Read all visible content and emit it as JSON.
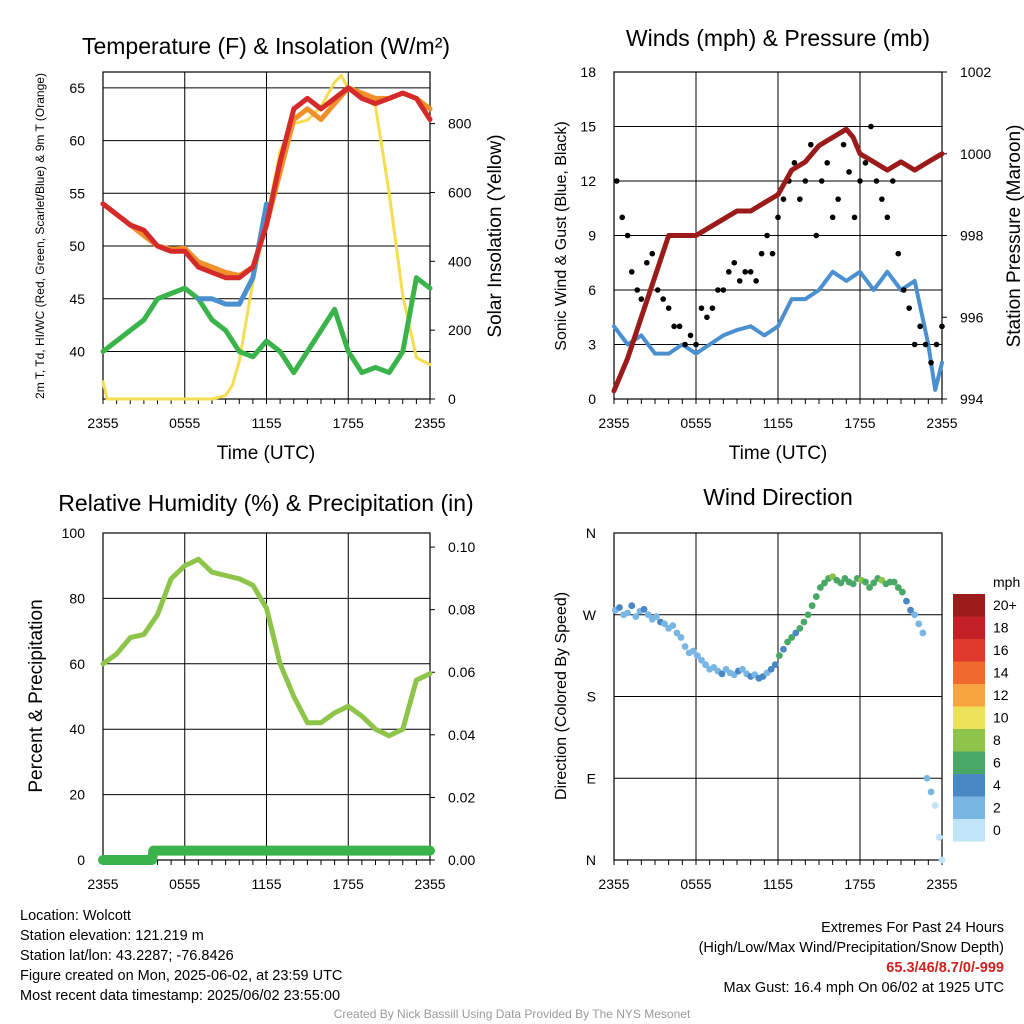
{
  "info": {
    "location": "Location: Wolcott",
    "elevation": "Station elevation: 121.219 m",
    "latlon": "Station lat/lon: 43.2287; -76.8426",
    "created": "Figure created on Mon, 2025-06-02, at 23:59 UTC",
    "recent": "Most recent data timestamp: 2025/06/02 23:55:00",
    "extremes_title": "Extremes For Past 24 Hours",
    "extremes_sub": "(High/Low/Max Wind/Precipitation/Snow Depth)",
    "extremes_values": "65.3/46/8.7/0/-999",
    "max_gust": "Max Gust: 16.4 mph On 06/02 at 1925 UTC"
  },
  "credit": "Created By Nick Bassill Using Data Provided By The NYS Mesonet",
  "colors": {
    "red": "#d42a2a",
    "orange": "#f0902a",
    "green": "#3ab34a",
    "blue": "#4a90d0",
    "yellow": "#f5dc50",
    "maroon": "#9b1b1b",
    "black": "#000000",
    "rh": "#8ec44a",
    "precip": "#3ab34a"
  },
  "chart_data": [
    {
      "type": "line",
      "title": "Temperature (F) & Insolation (W/m²)",
      "xlabel": "Time (UTC)",
      "ylabel": "2m T, Td, HI/WC (Red, Green, Scarlet/Blue) & 9m T (Orange)",
      "y2label": "Solar Insolation (Yellow)",
      "xticks": [
        "2355",
        "0555",
        "1155",
        "1755",
        "2355"
      ],
      "xlim": [
        0,
        24
      ],
      "ylim": [
        35.5,
        66.5
      ],
      "y2lim": [
        0,
        950
      ],
      "yticks": [
        40,
        45,
        50,
        55,
        60,
        65
      ],
      "y2ticks": [
        0,
        200,
        400,
        600,
        800
      ],
      "series": [
        {
          "name": "Temperature",
          "color": "red",
          "x": [
            0,
            1,
            2,
            3,
            4,
            5,
            6,
            7,
            8,
            9,
            10,
            11,
            12,
            13,
            14,
            15,
            16,
            17,
            18,
            19,
            20,
            21,
            22,
            23,
            24
          ],
          "y": [
            54,
            53,
            52,
            51.5,
            50,
            49.5,
            49.5,
            48,
            47.5,
            47,
            47,
            48,
            52,
            58,
            63,
            64,
            63,
            64,
            65,
            64,
            63.5,
            64,
            64.5,
            64,
            62
          ]
        },
        {
          "name": "9m Temperature",
          "color": "orange",
          "x": [
            0,
            2,
            4,
            5,
            6,
            7,
            8,
            9,
            10,
            11,
            12,
            13,
            14,
            15,
            16,
            17,
            18,
            19,
            20,
            21,
            22,
            23,
            24
          ],
          "y": [
            54,
            52,
            50,
            49.7,
            49.8,
            48.5,
            48,
            47.5,
            47.2,
            48,
            52,
            57,
            62,
            63,
            62,
            63.5,
            65,
            64.5,
            64,
            64,
            64.5,
            64,
            63
          ]
        },
        {
          "name": "Dewpoint",
          "color": "green",
          "x": [
            0,
            1,
            2,
            3,
            4,
            5,
            6,
            7,
            8,
            9,
            10,
            11,
            12,
            13,
            14,
            15,
            16,
            17,
            18,
            19,
            20,
            21,
            22,
            23,
            24
          ],
          "y": [
            40,
            41,
            42,
            43,
            45,
            45.5,
            46,
            45,
            43,
            42,
            40,
            39.5,
            41,
            40,
            38,
            40,
            42,
            44,
            40,
            38,
            38.5,
            38,
            40,
            47,
            46
          ]
        },
        {
          "name": "Heat Index / Wind Chill",
          "color": "blue",
          "x": [
            7,
            8,
            9,
            10,
            11,
            12
          ],
          "y": [
            45,
            45,
            44.5,
            44.5,
            47,
            54
          ]
        },
        {
          "name": "Solar Insolation",
          "color": "yellow",
          "axis": "y2",
          "x": [
            0,
            0.3,
            2,
            4,
            6,
            8,
            9,
            9.5,
            10,
            11,
            12,
            13,
            14,
            15,
            16,
            17,
            17.5,
            18,
            19,
            20,
            21,
            22,
            23,
            24
          ],
          "y": [
            50,
            0,
            0,
            0,
            0,
            0,
            10,
            40,
            110,
            340,
            520,
            720,
            800,
            810,
            850,
            920,
            940,
            900,
            880,
            850,
            600,
            300,
            120,
            100
          ]
        }
      ]
    },
    {
      "type": "scatter",
      "title": "Winds (mph) & Pressure (mb)",
      "xlabel": "Time (UTC)",
      "ylabel": "Sonic Wind & Gust (Blue, Black)",
      "y2label": "Station Pressure (Maroon)",
      "xticks": [
        "2355",
        "0555",
        "1155",
        "1755",
        "2355"
      ],
      "xlim": [
        0,
        24
      ],
      "ylim": [
        0,
        18
      ],
      "y2lim": [
        994,
        1002
      ],
      "yticks": [
        0,
        3,
        6,
        9,
        12,
        15,
        18
      ],
      "y2ticks": [
        994,
        996,
        998,
        1000,
        1002
      ],
      "series": [
        {
          "name": "Sonic Wind",
          "color": "blue",
          "kind": "line",
          "x": [
            0,
            1,
            2,
            3,
            4,
            5,
            6,
            7,
            8,
            9,
            10,
            11,
            12,
            13,
            14,
            15,
            16,
            17,
            18,
            19,
            20,
            21,
            22,
            23,
            23.5,
            24
          ],
          "y": [
            4,
            3,
            3.5,
            2.5,
            2.5,
            3,
            2.5,
            3,
            3.5,
            3.8,
            4,
            3.5,
            4,
            5.5,
            5.5,
            6,
            7,
            6.5,
            7,
            6,
            7,
            6,
            6.5,
            3,
            0.5,
            2
          ]
        },
        {
          "name": "Gust",
          "color": "black",
          "kind": "points",
          "x": [
            0.2,
            0.6,
            1,
            1.3,
            1.7,
            2,
            2.4,
            2.8,
            3.2,
            3.6,
            4,
            4.4,
            4.8,
            5.2,
            5.6,
            6,
            6.4,
            6.8,
            7.2,
            7.6,
            8,
            8.4,
            8.8,
            9.2,
            9.6,
            10,
            10.4,
            10.8,
            11.2,
            11.6,
            12,
            12.4,
            12.8,
            13.2,
            13.6,
            14,
            14.4,
            14.8,
            15.2,
            15.6,
            16,
            16.4,
            16.8,
            17.2,
            17.6,
            18,
            18.4,
            18.8,
            19.2,
            19.6,
            20,
            20.4,
            20.8,
            21.2,
            21.6,
            22,
            22.4,
            22.8,
            23.2,
            23.6,
            24
          ],
          "y": [
            12,
            10,
            9,
            7,
            6,
            5.5,
            7.5,
            8,
            6,
            5.5,
            5,
            4,
            4,
            3,
            3.5,
            3,
            5,
            4.5,
            5,
            6,
            6,
            7,
            7.5,
            6.5,
            7,
            7,
            6.5,
            8,
            9,
            8,
            10,
            11,
            12,
            13,
            11,
            12,
            14,
            9,
            12,
            13,
            10,
            11,
            14,
            12.5,
            10,
            12,
            13,
            15,
            12,
            11,
            10,
            12,
            8,
            6,
            5,
            3,
            4,
            3,
            2,
            3,
            4
          ]
        },
        {
          "name": "Station Pressure",
          "color": "maroon",
          "kind": "line",
          "axis": "y2",
          "x": [
            0,
            1,
            2,
            3,
            4,
            5,
            6,
            7,
            8,
            9,
            10,
            11,
            12,
            13,
            14,
            15,
            16,
            17,
            17.5,
            18,
            19,
            20,
            21,
            22,
            23,
            24
          ],
          "y": [
            994.2,
            995,
            996,
            997,
            998,
            998,
            998,
            998.2,
            998.4,
            998.6,
            998.6,
            998.8,
            999,
            999.6,
            999.8,
            1000.2,
            1000.4,
            1000.6,
            1000.4,
            1000,
            999.8,
            999.6,
            999.8,
            999.6,
            999.8,
            1000
          ]
        }
      ]
    },
    {
      "type": "line",
      "title": "Relative Humidity (%) & Precipitation (in)",
      "ylabel": "Percent & Precipitation",
      "xticks": [
        "2355",
        "0555",
        "1155",
        "1755",
        "2355"
      ],
      "xlim": [
        0,
        24
      ],
      "ylim": [
        0,
        100
      ],
      "y2lim": [
        0,
        0.1045
      ],
      "yticks": [
        0,
        20,
        40,
        60,
        80,
        100
      ],
      "y2ticks": [
        "0.00",
        "0.02",
        "0.04",
        "0.06",
        "0.08",
        "0.10"
      ],
      "series": [
        {
          "name": "Relative Humidity",
          "color": "rh",
          "x": [
            0,
            1,
            2,
            3,
            4,
            5,
            6,
            7,
            8,
            9,
            10,
            11,
            12,
            13,
            14,
            15,
            16,
            17,
            18,
            19,
            20,
            21,
            22,
            23,
            24
          ],
          "y": [
            60,
            63,
            68,
            69,
            75,
            86,
            90,
            92,
            88,
            87,
            86,
            84,
            77,
            60,
            50,
            42,
            42,
            45,
            47,
            44,
            40,
            38,
            40,
            55,
            57
          ]
        },
        {
          "name": "Precipitation",
          "color": "precip",
          "axis": "y2",
          "x": [
            0,
            3.6,
            3.7,
            24
          ],
          "y": [
            0,
            0,
            0.003,
            0.003
          ]
        }
      ]
    },
    {
      "type": "scatter",
      "title": "Wind Direction",
      "ylabel": "Direction (Colored By Speed)",
      "xticks": [
        "2355",
        "0555",
        "1155",
        "1755",
        "2355"
      ],
      "yticks": [
        "N",
        "E",
        "S",
        "W",
        "N"
      ],
      "xlim": [
        0,
        24
      ],
      "ylim": [
        0,
        360
      ],
      "legend": {
        "title": "mph",
        "labels": [
          "20+",
          "18",
          "16",
          "14",
          "12",
          "10",
          "8",
          "6",
          "4",
          "2",
          "0"
        ],
        "colors": [
          "#9b1b1b",
          "#c22026",
          "#e03a2e",
          "#f06a2e",
          "#f8a440",
          "#ede15a",
          "#8ec44a",
          "#4aa866",
          "#4a88c4",
          "#7ab6e4",
          "#bfe3f7"
        ]
      },
      "points": {
        "x": [
          0.1,
          0.4,
          0.7,
          1,
          1.3,
          1.6,
          1.9,
          2.2,
          2.5,
          2.8,
          3.1,
          3.4,
          3.7,
          4,
          4.3,
          4.6,
          4.9,
          5.2,
          5.5,
          5.8,
          6.1,
          6.4,
          6.7,
          7,
          7.3,
          7.6,
          7.9,
          8.2,
          8.5,
          8.8,
          9.1,
          9.4,
          9.7,
          10,
          10.3,
          10.6,
          10.9,
          11.2,
          11.5,
          11.8,
          12.1,
          12.4,
          12.7,
          13,
          13.3,
          13.6,
          13.9,
          14.2,
          14.5,
          14.8,
          15.1,
          15.4,
          15.7,
          16,
          16.3,
          16.6,
          16.9,
          17.2,
          17.5,
          17.8,
          18.1,
          18.4,
          18.7,
          19,
          19.3,
          19.6,
          19.9,
          20.2,
          20.5,
          20.8,
          21.1,
          21.4,
          21.7,
          22,
          22.3,
          22.6,
          22.9,
          23.2,
          23.5,
          23.8,
          24
        ],
        "y": [
          275,
          278,
          270,
          272,
          280,
          268,
          274,
          276,
          270,
          265,
          268,
          262,
          260,
          255,
          258,
          250,
          245,
          235,
          228,
          230,
          225,
          220,
          215,
          210,
          212,
          208,
          205,
          210,
          206,
          204,
          208,
          210,
          205,
          202,
          204,
          200,
          202,
          206,
          210,
          215,
          225,
          232,
          240,
          245,
          250,
          255,
          262,
          270,
          280,
          290,
          300,
          305,
          310,
          312,
          308,
          305,
          310,
          306,
          304,
          310,
          308,
          306,
          300,
          305,
          310,
          308,
          304,
          306,
          306,
          300,
          295,
          285,
          275,
          270,
          260,
          250,
          90,
          75,
          60,
          25,
          0
        ],
        "speed": [
          3,
          4,
          3,
          2,
          4,
          3,
          3,
          4,
          2,
          3,
          3,
          4,
          2,
          2,
          3,
          2,
          3,
          2,
          2,
          2,
          3,
          3,
          2,
          2,
          3,
          3,
          4,
          3,
          2,
          3,
          4,
          3,
          3,
          4,
          3,
          4,
          4,
          3,
          4,
          5,
          6,
          5,
          6,
          6,
          5,
          7,
          6,
          7,
          6,
          7,
          6,
          6,
          7,
          8,
          7,
          6,
          7,
          6,
          7,
          7,
          8,
          7,
          6,
          6,
          7,
          8,
          6,
          7,
          6,
          6,
          7,
          5,
          4,
          3,
          3,
          2,
          2,
          2,
          1,
          0,
          1
        ]
      }
    }
  ]
}
